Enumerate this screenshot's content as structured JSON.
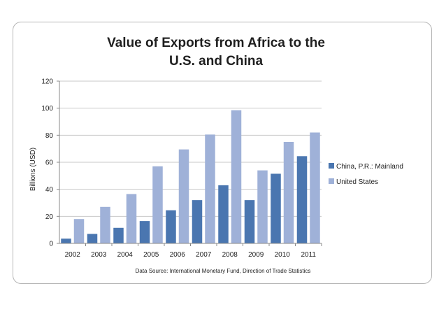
{
  "chart_data": {
    "type": "bar",
    "title": "Value of Exports from Africa to the U.S. and China",
    "xlabel": "",
    "ylabel": "Billions (USD)",
    "ylim": [
      0,
      120
    ],
    "yticks": [
      0,
      20,
      40,
      60,
      80,
      100,
      120
    ],
    "grid": true,
    "legend_position": "right",
    "categories": [
      "2002",
      "2003",
      "2004",
      "2005",
      "2006",
      "2007",
      "2008",
      "2009",
      "2010",
      "2011"
    ],
    "series": [
      {
        "name": "China, P.R.: Mainland",
        "color": "#4a76b0",
        "values": [
          3.5,
          7,
          11.5,
          16.5,
          24.5,
          32,
          43,
          32,
          51.5,
          64.5
        ]
      },
      {
        "name": "United States",
        "color": "#9fb1d8",
        "values": [
          18,
          27,
          36.5,
          57,
          69.5,
          80.5,
          98.5,
          54,
          75,
          82
        ]
      }
    ],
    "source": "Data Source: International Monetary Fund, Direction of Trade Statistics"
  }
}
